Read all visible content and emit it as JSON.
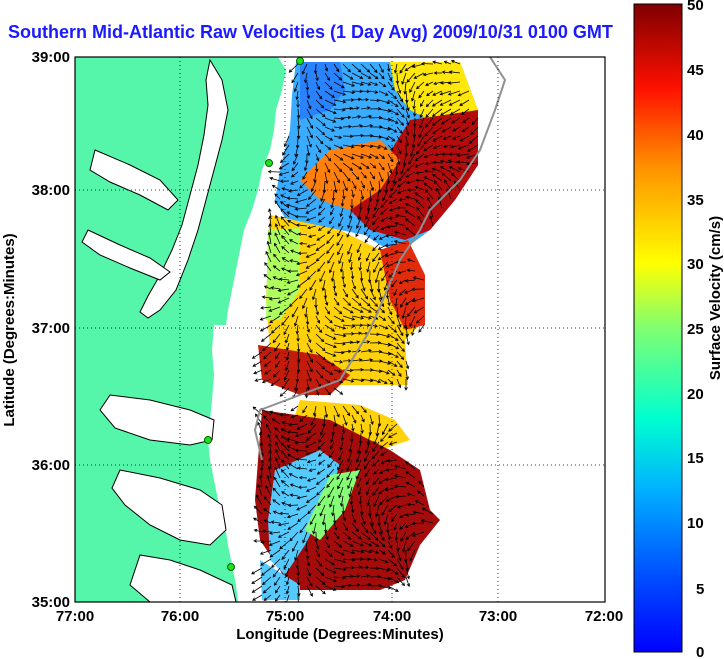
{
  "title": "Southern Mid-Atlantic Raw Velocities (1 Day Avg) 2009/10/31 0100 GMT",
  "map": {
    "xlabel": "Longitude (Degrees:Minutes)",
    "ylabel": "Latitude (Degrees:Minutes)",
    "xticks": [
      "77:00",
      "76:00",
      "75:00",
      "74:00",
      "73:00",
      "72:00"
    ],
    "yticks": [
      "39:00",
      "38:00",
      "37:00",
      "36:00",
      "35:00"
    ],
    "land_color": "#55f5aa",
    "grid": true
  },
  "colorbar": {
    "label": "Surface Velocity (cm/s)",
    "ticks": [
      "50",
      "45",
      "40",
      "35",
      "30",
      "25",
      "20",
      "15",
      "10",
      "5",
      "0"
    ],
    "colormap": "jet",
    "range": [
      0,
      50
    ]
  }
}
